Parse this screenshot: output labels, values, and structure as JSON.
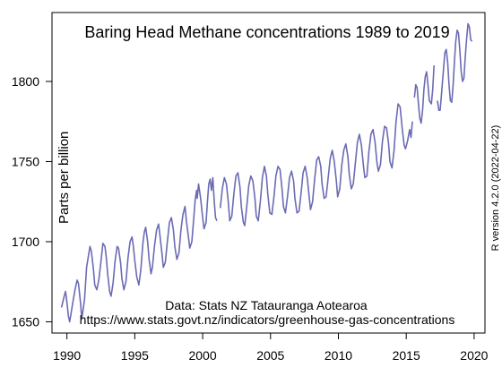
{
  "chart_data": {
    "type": "line",
    "title": "Baring Head Methane concentrations 1989 to 2019",
    "xlabel": "",
    "ylabel": "Parts per billion",
    "xlim": [
      1988.9,
      2020.8
    ],
    "ylim": [
      1643,
      1843
    ],
    "x_ticks": [
      1990,
      1995,
      2000,
      2005,
      2010,
      2015,
      2020
    ],
    "y_ticks": [
      1650,
      1700,
      1750,
      1800
    ],
    "grid": false,
    "legend": "none",
    "line_color": "#6B6BB5",
    "annotations": [
      "Data: Stats NZ Tatauranga Aotearoa",
      "https://www.stats.govt.nz/indicators/greenhouse-gas-concentrations"
    ],
    "side_note": "R version 4.2.0 (2022-04-22)",
    "series": [
      {
        "values": [
          [
            1989.6,
            1659
          ],
          [
            1989.8,
            1666
          ],
          [
            1989.9,
            1669
          ],
          [
            1990.0,
            1662
          ],
          [
            1990.1,
            1654
          ],
          [
            1990.2,
            1650
          ],
          [
            1990.3,
            1655
          ],
          [
            1990.45,
            1663
          ],
          [
            1990.6,
            1670
          ],
          [
            1990.75,
            1676
          ],
          [
            1990.85,
            1674
          ],
          [
            1991.0,
            1662
          ],
          [
            1991.1,
            1652
          ],
          [
            1991.3,
            1664
          ],
          [
            1991.45,
            1684
          ],
          [
            1991.6,
            1692
          ],
          [
            1991.7,
            1697
          ],
          [
            1991.8,
            1694
          ],
          [
            1991.95,
            1683
          ],
          [
            1992.05,
            1673
          ],
          [
            1992.2,
            1670
          ],
          [
            1992.35,
            1676
          ],
          [
            1992.5,
            1687
          ],
          [
            1992.65,
            1699
          ],
          [
            1992.8,
            1697
          ],
          [
            1992.9,
            1690
          ],
          [
            1993.0,
            1680
          ],
          [
            1993.15,
            1669
          ],
          [
            1993.25,
            1666
          ],
          [
            1993.4,
            1674
          ],
          [
            1993.55,
            1688
          ],
          [
            1993.7,
            1697
          ],
          [
            1993.8,
            1696
          ],
          [
            1993.95,
            1687
          ],
          [
            1994.05,
            1677
          ],
          [
            1994.2,
            1670
          ],
          [
            1994.35,
            1675
          ],
          [
            1994.5,
            1690
          ],
          [
            1994.65,
            1700
          ],
          [
            1994.8,
            1703
          ],
          [
            1994.9,
            1697
          ],
          [
            1995.0,
            1688
          ],
          [
            1995.15,
            1678
          ],
          [
            1995.3,
            1673
          ],
          [
            1995.45,
            1683
          ],
          [
            1995.6,
            1699
          ],
          [
            1995.7,
            1706
          ],
          [
            1995.8,
            1709
          ],
          [
            1995.95,
            1700
          ],
          [
            1996.05,
            1689
          ],
          [
            1996.2,
            1680
          ],
          [
            1996.3,
            1684
          ],
          [
            1996.45,
            1697
          ],
          [
            1996.6,
            1707
          ],
          [
            1996.75,
            1711
          ],
          [
            1996.85,
            1704
          ],
          [
            1997.0,
            1693
          ],
          [
            1997.1,
            1684
          ],
          [
            1997.25,
            1687
          ],
          [
            1997.4,
            1700
          ],
          [
            1997.55,
            1712
          ],
          [
            1997.7,
            1715
          ],
          [
            1997.85,
            1707
          ],
          [
            1997.95,
            1697
          ],
          [
            1998.1,
            1689
          ],
          [
            1998.25,
            1693
          ],
          [
            1998.4,
            1707
          ],
          [
            1998.55,
            1717
          ],
          [
            1998.7,
            1722
          ],
          [
            1998.8,
            1713
          ],
          [
            1998.95,
            1703
          ],
          [
            1999.05,
            1696
          ],
          [
            1999.2,
            1700
          ],
          [
            1999.35,
            1715
          ],
          [
            1999.45,
            1726
          ],
          [
            1999.55,
            1732
          ],
          [
            1999.6,
            1727
          ],
          [
            1999.7,
            1736
          ],
          [
            1999.85,
            1727
          ],
          [
            2000.0,
            1715
          ],
          [
            2000.1,
            1708
          ],
          [
            2000.25,
            1712
          ],
          [
            2000.35,
            1725
          ],
          [
            2000.45,
            1736
          ],
          [
            2000.55,
            1739
          ],
          [
            2000.65,
            1732
          ],
          [
            2000.75,
            1740
          ],
          [
            2000.85,
            1726
          ],
          [
            2000.95,
            1715
          ],
          [
            2001.05,
            1713
          ]
        ]
      },
      {
        "values": [
          [
            2001.3,
            1721
          ],
          [
            2001.45,
            1733
          ],
          [
            2001.6,
            1740
          ],
          [
            2001.75,
            1736
          ],
          [
            2001.9,
            1724
          ],
          [
            2002.0,
            1713
          ],
          [
            2002.15,
            1716
          ],
          [
            2002.3,
            1730
          ],
          [
            2002.45,
            1741
          ],
          [
            2002.6,
            1743
          ],
          [
            2002.75,
            1734
          ],
          [
            2002.85,
            1722
          ],
          [
            2003.0,
            1712
          ],
          [
            2003.1,
            1710
          ],
          [
            2003.25,
            1722
          ],
          [
            2003.4,
            1735
          ],
          [
            2003.55,
            1741
          ],
          [
            2003.7,
            1738
          ],
          [
            2003.85,
            1727
          ],
          [
            2003.95,
            1716
          ],
          [
            2004.1,
            1713
          ],
          [
            2004.25,
            1725
          ],
          [
            2004.4,
            1740
          ],
          [
            2004.55,
            1747
          ],
          [
            2004.7,
            1741
          ],
          [
            2004.8,
            1730
          ],
          [
            2004.95,
            1718
          ],
          [
            2005.1,
            1717
          ],
          [
            2005.25,
            1728
          ],
          [
            2005.4,
            1741
          ],
          [
            2005.55,
            1747
          ],
          [
            2005.7,
            1745
          ],
          [
            2005.85,
            1733
          ],
          [
            2005.95,
            1722
          ],
          [
            2006.1,
            1718
          ],
          [
            2006.25,
            1728
          ],
          [
            2006.4,
            1740
          ],
          [
            2006.55,
            1744
          ],
          [
            2006.7,
            1738
          ],
          [
            2006.8,
            1727
          ],
          [
            2006.95,
            1718
          ],
          [
            2007.1,
            1719
          ],
          [
            2007.25,
            1730
          ],
          [
            2007.4,
            1743
          ],
          [
            2007.55,
            1747
          ],
          [
            2007.7,
            1740
          ],
          [
            2007.85,
            1728
          ],
          [
            2007.95,
            1720
          ],
          [
            2008.1,
            1725
          ],
          [
            2008.25,
            1739
          ],
          [
            2008.4,
            1751
          ],
          [
            2008.55,
            1753
          ],
          [
            2008.7,
            1747
          ],
          [
            2008.8,
            1736
          ],
          [
            2008.95,
            1727
          ],
          [
            2009.1,
            1728
          ],
          [
            2009.25,
            1740
          ],
          [
            2009.4,
            1752
          ],
          [
            2009.55,
            1757
          ],
          [
            2009.7,
            1750
          ],
          [
            2009.85,
            1738
          ],
          [
            2009.95,
            1728
          ],
          [
            2010.1,
            1733
          ],
          [
            2010.25,
            1748
          ],
          [
            2010.4,
            1757
          ],
          [
            2010.55,
            1761
          ],
          [
            2010.7,
            1753
          ],
          [
            2010.8,
            1742
          ],
          [
            2010.95,
            1733
          ],
          [
            2011.1,
            1736
          ],
          [
            2011.25,
            1749
          ],
          [
            2011.4,
            1762
          ],
          [
            2011.55,
            1767
          ],
          [
            2011.7,
            1760
          ],
          [
            2011.85,
            1747
          ],
          [
            2011.95,
            1740
          ],
          [
            2012.1,
            1741
          ],
          [
            2012.25,
            1756
          ],
          [
            2012.4,
            1767
          ],
          [
            2012.55,
            1770
          ],
          [
            2012.7,
            1762
          ],
          [
            2012.85,
            1749
          ],
          [
            2012.95,
            1744
          ],
          [
            2013.1,
            1748
          ],
          [
            2013.25,
            1763
          ],
          [
            2013.4,
            1772
          ],
          [
            2013.55,
            1771
          ],
          [
            2013.7,
            1761
          ],
          [
            2013.8,
            1750
          ],
          [
            2013.95,
            1746
          ],
          [
            2014.1,
            1757
          ],
          [
            2014.25,
            1775
          ],
          [
            2014.4,
            1786
          ],
          [
            2014.55,
            1784
          ],
          [
            2014.7,
            1771
          ],
          [
            2014.85,
            1760
          ],
          [
            2014.95,
            1758
          ],
          [
            2015.1,
            1763
          ],
          [
            2015.25,
            1770
          ],
          [
            2015.35,
            1765
          ],
          [
            2015.45,
            1775
          ]
        ]
      },
      {
        "values": [
          [
            2015.6,
            1790
          ],
          [
            2015.7,
            1798
          ],
          [
            2015.8,
            1796
          ],
          [
            2015.9,
            1786
          ],
          [
            2016.0,
            1777
          ],
          [
            2016.1,
            1774
          ],
          [
            2016.2,
            1782
          ],
          [
            2016.3,
            1795
          ],
          [
            2016.4,
            1803
          ],
          [
            2016.5,
            1806
          ],
          [
            2016.6,
            1798
          ],
          [
            2016.7,
            1788
          ],
          [
            2016.85,
            1786
          ],
          [
            2016.95,
            1795
          ],
          [
            2017.05,
            1810
          ]
        ]
      },
      {
        "values": [
          [
            2017.3,
            1788
          ],
          [
            2017.4,
            1782
          ],
          [
            2017.5,
            1782
          ],
          [
            2017.6,
            1792
          ],
          [
            2017.75,
            1808
          ],
          [
            2017.85,
            1818
          ],
          [
            2017.95,
            1820
          ],
          [
            2018.05,
            1812
          ],
          [
            2018.15,
            1798
          ],
          [
            2018.25,
            1788
          ],
          [
            2018.35,
            1787
          ],
          [
            2018.45,
            1797
          ],
          [
            2018.55,
            1812
          ],
          [
            2018.65,
            1825
          ],
          [
            2018.75,
            1832
          ],
          [
            2018.85,
            1830
          ],
          [
            2018.95,
            1819
          ],
          [
            2019.05,
            1806
          ],
          [
            2019.15,
            1800
          ],
          [
            2019.25,
            1802
          ],
          [
            2019.35,
            1815
          ],
          [
            2019.45,
            1827
          ],
          [
            2019.55,
            1836
          ],
          [
            2019.65,
            1834
          ],
          [
            2019.75,
            1826
          ],
          [
            2019.85,
            1825
          ]
        ]
      }
    ]
  }
}
